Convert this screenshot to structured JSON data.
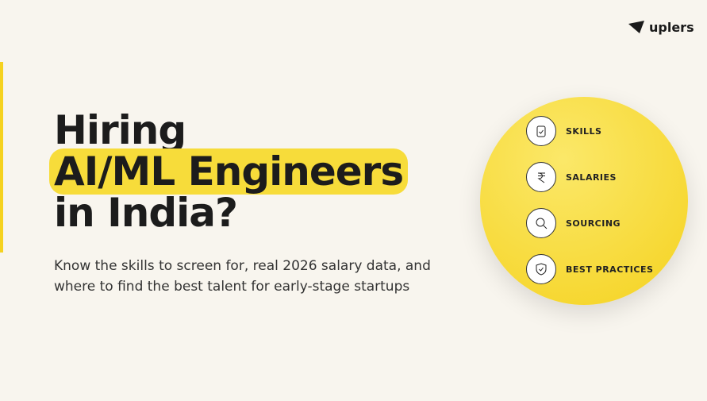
{
  "logo": "uplers",
  "headline": {
    "line1": "Hiring",
    "line2": "AI/ML Engineers",
    "line3": "in India?"
  },
  "subtitle": {
    "line1": "Know the skills to screen for, real 2026 salary data, and",
    "line2": "where to find the best talent for early-stage startups"
  },
  "items": [
    "SKILLS",
    "SALARIES",
    "SOURCING",
    "BEST PRACTICES"
  ]
}
